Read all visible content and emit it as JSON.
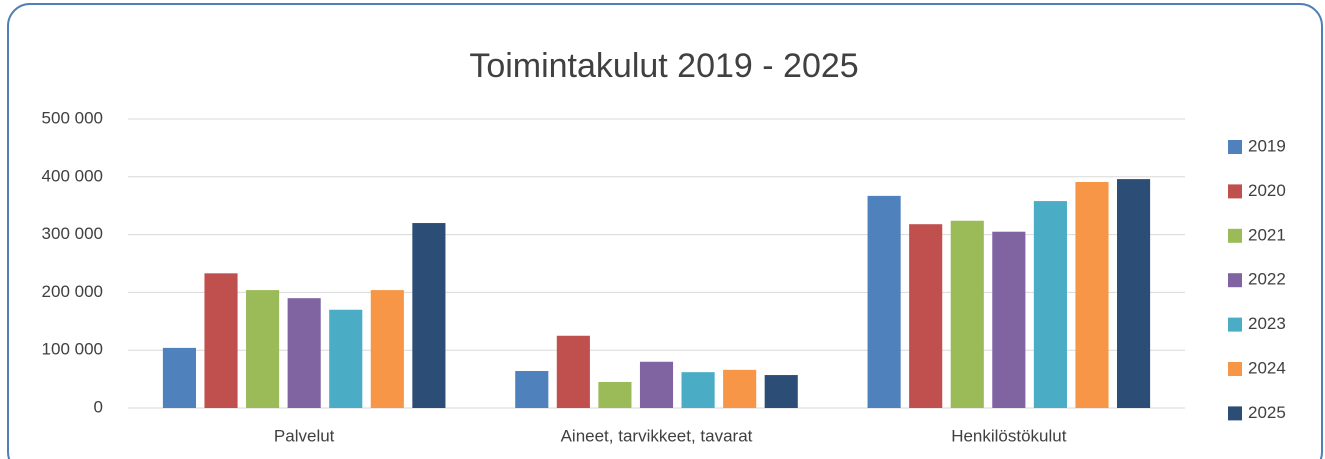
{
  "chart_data": {
    "type": "bar",
    "title": "Toimintakulut 2019 - 2025",
    "categories": [
      "Palvelut",
      "Aineet, tarvikkeet, tavarat",
      "Henkilöstökulut"
    ],
    "series": [
      {
        "name": "2019",
        "color": "#4f81bd",
        "values": [
          104000,
          64000,
          367000
        ]
      },
      {
        "name": "2020",
        "color": "#c0504d",
        "values": [
          233000,
          125000,
          318000
        ]
      },
      {
        "name": "2021",
        "color": "#9bbb59",
        "values": [
          204000,
          45000,
          324000
        ]
      },
      {
        "name": "2022",
        "color": "#8064a2",
        "values": [
          190000,
          80000,
          305000
        ]
      },
      {
        "name": "2023",
        "color": "#4bacc6",
        "values": [
          170000,
          62000,
          358000
        ]
      },
      {
        "name": "2024",
        "color": "#f79646",
        "values": [
          204000,
          66000,
          391000
        ]
      },
      {
        "name": "2025",
        "color": "#2c4d75",
        "values": [
          320000,
          57000,
          396000
        ]
      }
    ],
    "ylim": [
      0,
      500000
    ],
    "yticks": [
      0,
      {
        "value": 100000,
        "label": "100 000"
      },
      {
        "value": 200000,
        "label": "200 000"
      },
      {
        "value": 300000,
        "label": "300 000"
      },
      {
        "value": 400000,
        "label": "400 000"
      },
      {
        "value": 500000,
        "label": "500 000"
      }
    ],
    "grid": true,
    "legend": "right"
  }
}
